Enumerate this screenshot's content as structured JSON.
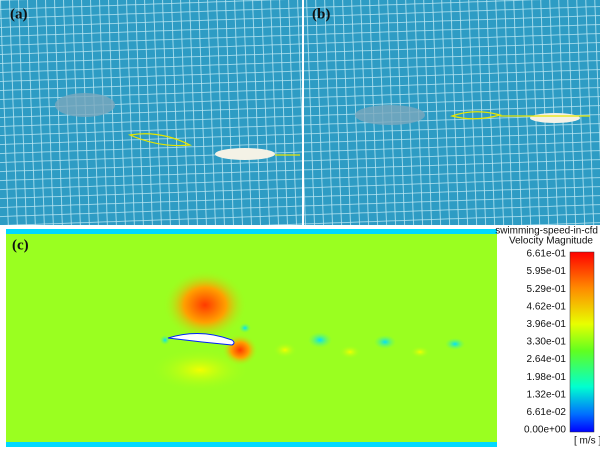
{
  "panels": [
    {
      "label": "(a)"
    },
    {
      "label": "(b)"
    },
    {
      "label": "(c)"
    }
  ],
  "colorbar": {
    "source": "swimming-speed-in-cfd",
    "title": "Velocity Magnitude",
    "ticks": [
      "6.61e-01",
      "5.95e-01",
      "5.29e-01",
      "4.62e-01",
      "3.96e-01",
      "3.30e-01",
      "2.64e-01",
      "1.98e-01",
      "1.32e-01",
      "6.61e-02",
      "0.00e+00"
    ],
    "unit": "[ m/s ]"
  }
}
